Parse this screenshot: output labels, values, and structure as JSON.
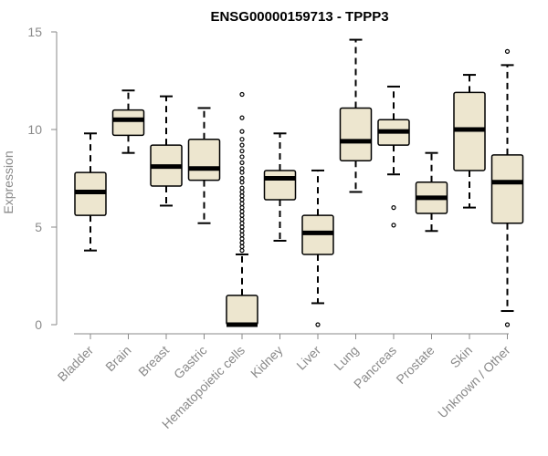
{
  "chart_data": {
    "type": "boxplot",
    "title": "ENSG00000159713 - TPPP3",
    "xlabel": "",
    "ylabel": "Expression",
    "ylim": [
      0,
      15
    ],
    "yticks": [
      0,
      5,
      10,
      15
    ],
    "grid": false,
    "box_fill": "#ede6cf",
    "box_stroke": "#000000",
    "categories": [
      "Bladder",
      "Brain",
      "Breast",
      "Gastric",
      "Hematopoietic cells",
      "Kidney",
      "Liver",
      "Lung",
      "Pancreas",
      "Prostate",
      "Skin",
      "Unknown / Other"
    ],
    "boxes": [
      {
        "q1": 5.6,
        "median": 6.8,
        "q3": 7.8,
        "whislo": 3.8,
        "whishi": 9.8,
        "outliers": []
      },
      {
        "q1": 9.7,
        "median": 10.5,
        "q3": 11.0,
        "whislo": 8.8,
        "whishi": 12.0,
        "outliers": []
      },
      {
        "q1": 7.1,
        "median": 8.1,
        "q3": 9.2,
        "whislo": 6.1,
        "whishi": 11.7,
        "outliers": []
      },
      {
        "q1": 7.4,
        "median": 8.0,
        "q3": 9.5,
        "whislo": 5.2,
        "whishi": 11.1,
        "outliers": []
      },
      {
        "q1": 0.0,
        "median": 0.0,
        "q3": 1.5,
        "whislo": 0.0,
        "whishi": 3.6,
        "outliers": [
          11.8,
          10.6,
          9.9,
          9.5,
          9.2,
          8.9,
          8.6,
          8.3,
          8.0,
          7.8,
          7.5,
          7.3,
          7.0,
          6.8,
          6.6,
          6.4,
          6.2,
          6.0,
          5.8,
          5.6,
          5.4,
          5.2,
          5.0,
          4.8,
          4.6,
          4.4,
          4.2,
          4.0,
          3.8
        ]
      },
      {
        "q1": 6.4,
        "median": 7.5,
        "q3": 7.9,
        "whislo": 4.3,
        "whishi": 9.8,
        "outliers": []
      },
      {
        "q1": 3.6,
        "median": 4.7,
        "q3": 5.6,
        "whislo": 1.1,
        "whishi": 7.9,
        "outliers": [
          0.0
        ]
      },
      {
        "q1": 8.4,
        "median": 9.4,
        "q3": 11.1,
        "whislo": 6.8,
        "whishi": 14.6,
        "outliers": []
      },
      {
        "q1": 9.2,
        "median": 9.9,
        "q3": 10.5,
        "whislo": 7.7,
        "whishi": 12.2,
        "outliers": [
          6.0,
          5.1
        ]
      },
      {
        "q1": 5.7,
        "median": 6.5,
        "q3": 7.3,
        "whislo": 4.8,
        "whishi": 8.8,
        "outliers": []
      },
      {
        "q1": 7.9,
        "median": 10.0,
        "q3": 11.9,
        "whislo": 6.0,
        "whishi": 12.8,
        "outliers": []
      },
      {
        "q1": 5.2,
        "median": 7.3,
        "q3": 8.7,
        "whislo": 0.7,
        "whishi": 13.3,
        "outliers": [
          14.0,
          0.0
        ]
      }
    ]
  }
}
